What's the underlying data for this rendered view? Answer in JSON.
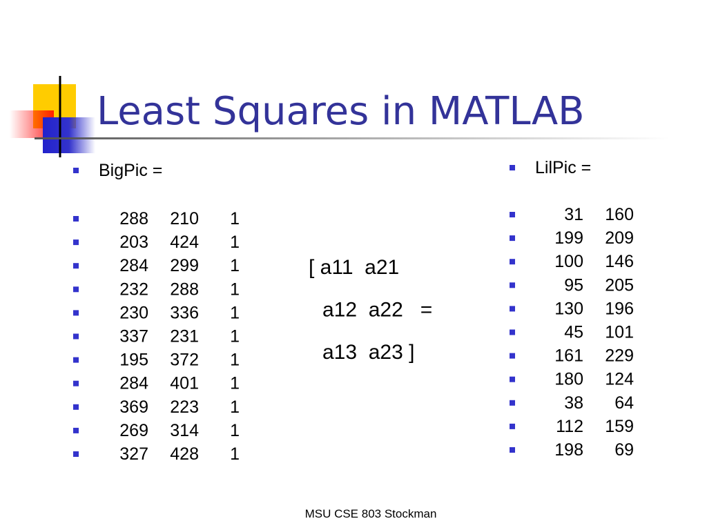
{
  "title": "Least Squares in MATLAB",
  "left": {
    "label": "BigPic =",
    "rows": [
      [
        288,
        210,
        1
      ],
      [
        203,
        424,
        1
      ],
      [
        284,
        299,
        1
      ],
      [
        232,
        288,
        1
      ],
      [
        230,
        336,
        1
      ],
      [
        337,
        231,
        1
      ],
      [
        195,
        372,
        1
      ],
      [
        284,
        401,
        1
      ],
      [
        369,
        223,
        1
      ],
      [
        269,
        314,
        1
      ],
      [
        327,
        428,
        1
      ]
    ]
  },
  "middle": {
    "lines": [
      "[ a11  a21",
      "a12  a22   =",
      "a13  a23 ]"
    ]
  },
  "right": {
    "label": "LilPic =",
    "rows": [
      [
        31,
        160
      ],
      [
        199,
        209
      ],
      [
        100,
        146
      ],
      [
        95,
        205
      ],
      [
        130,
        196
      ],
      [
        45,
        101
      ],
      [
        161,
        229
      ],
      [
        180,
        124
      ],
      [
        38,
        64
      ],
      [
        112,
        159
      ],
      [
        198,
        69
      ]
    ]
  },
  "footer": "MSU CSE 803 Stockman"
}
